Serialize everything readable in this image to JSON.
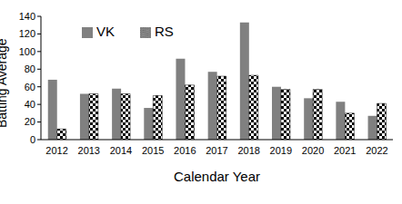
{
  "chart_data": {
    "type": "bar",
    "categories": [
      "2012",
      "2013",
      "2014",
      "2015",
      "2016",
      "2017",
      "2018",
      "2019",
      "2020",
      "2021",
      "2022"
    ],
    "series": [
      {
        "name": "VK",
        "color": "#808080",
        "values": [
          68,
          52,
          58,
          36,
          92,
          77,
          133,
          60,
          47,
          43,
          27
        ]
      },
      {
        "name": "RS",
        "color": "#000000",
        "marker": "checkered",
        "values": [
          12,
          52,
          52,
          50,
          62,
          72,
          73,
          57,
          57,
          30,
          41
        ]
      }
    ],
    "x_label": "Calendar Year",
    "y_label": "Batting Average",
    "ylim": [
      0,
      140
    ],
    "yticks": [
      0,
      20,
      40,
      60,
      80,
      100,
      120,
      140
    ],
    "grid": false,
    "legend": "upper left"
  }
}
